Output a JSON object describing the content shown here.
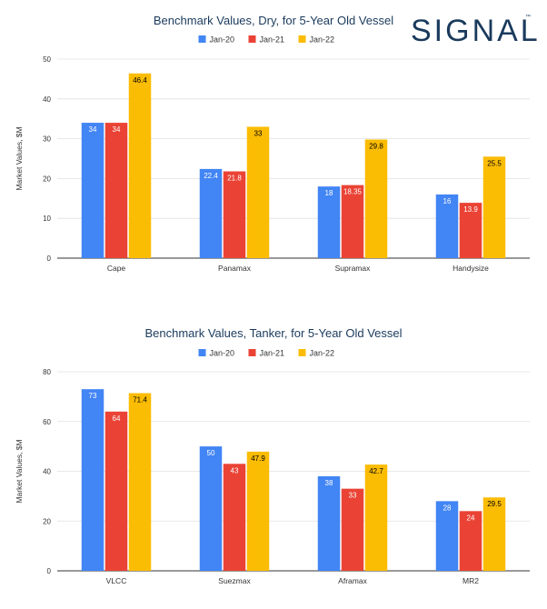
{
  "logo": {
    "text": "SIGNAL",
    "tm": "™"
  },
  "colors": {
    "jan20": "#4285f4",
    "jan21": "#ea4335",
    "jan22": "#fbbc04",
    "title": "#1a3a5c",
    "grid": "#e0e0e0",
    "axis": "#333333"
  },
  "chart_data": [
    {
      "type": "bar",
      "title": "Benchmark Values, Dry, for 5-Year Old Vessel",
      "xlabel": "",
      "ylabel": "Market Values, $M",
      "ylim": [
        0,
        50
      ],
      "yticks": [
        0,
        10,
        20,
        30,
        40,
        50
      ],
      "categories": [
        "Cape",
        "Panamax",
        "Supramax",
        "Handysize"
      ],
      "series": [
        {
          "name": "Jan-20",
          "values": [
            34,
            22.4,
            18,
            16
          ],
          "labels": [
            "34",
            "22.4",
            "18",
            "16"
          ]
        },
        {
          "name": "Jan-21",
          "values": [
            34,
            21.8,
            18.35,
            13.9
          ],
          "labels": [
            "34",
            "21.8",
            "18.35",
            "13.9"
          ]
        },
        {
          "name": "Jan-22",
          "values": [
            46.4,
            33,
            29.8,
            25.5
          ],
          "labels": [
            "46.4",
            "33",
            "29.8",
            "25.5"
          ]
        }
      ],
      "grid": true,
      "legend": "top-center"
    },
    {
      "type": "bar",
      "title": "Benchmark Values, Tanker, for 5-Year Old Vessel",
      "xlabel": "",
      "ylabel": "Market Values, $M",
      "ylim": [
        0,
        80
      ],
      "yticks": [
        0,
        20,
        40,
        60,
        80
      ],
      "categories": [
        "VLCC",
        "Suezmax",
        "Aframax",
        "MR2"
      ],
      "series": [
        {
          "name": "Jan-20",
          "values": [
            73,
            50,
            38,
            28
          ],
          "labels": [
            "73",
            "50",
            "38",
            "28"
          ]
        },
        {
          "name": "Jan-21",
          "values": [
            64,
            43,
            33,
            24
          ],
          "labels": [
            "64",
            "43",
            "33",
            "24"
          ]
        },
        {
          "name": "Jan-22",
          "values": [
            71.4,
            47.9,
            42.7,
            29.5
          ],
          "labels": [
            "71.4",
            "47.9",
            "42.7",
            "29.5"
          ]
        }
      ],
      "grid": true,
      "legend": "top-center"
    }
  ]
}
